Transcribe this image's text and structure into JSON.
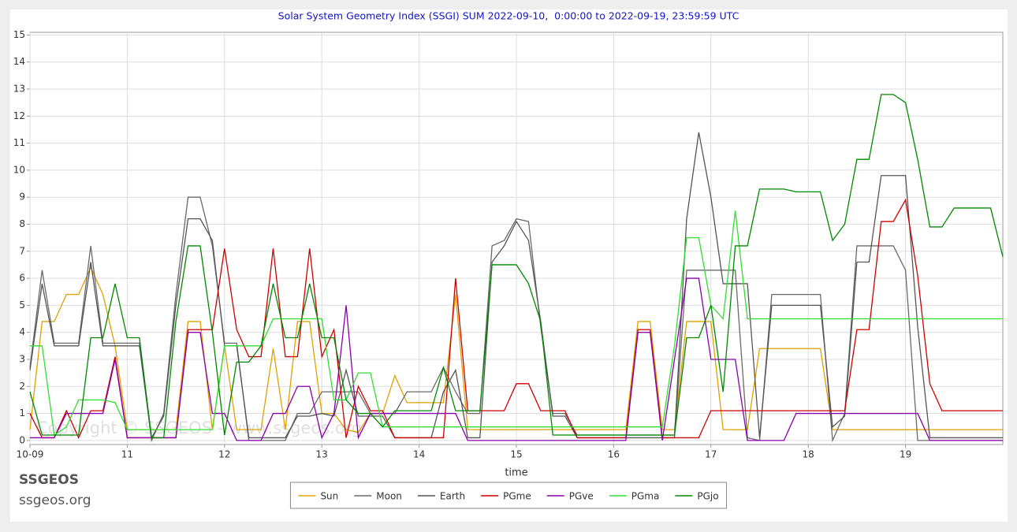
{
  "chart_data": {
    "type": "line",
    "title": "Solar System Geometry Index (SSGI) SUM 2022-09-10,  0:00:00 to 2022-09-19, 23:59:59 UTC",
    "x_label": "time",
    "brand": "SSGEOS",
    "site": "ssgeos.org",
    "watermark": "Copyright © SSGEOS - www.ssgeos.org",
    "xlim": [
      10,
      20
    ],
    "ylim": [
      -0.15,
      15.1
    ],
    "xticks": [
      {
        "value": 10,
        "label": "10-09"
      },
      11,
      12,
      13,
      14,
      15,
      16,
      17,
      18,
      19
    ],
    "yticks": [
      0,
      1,
      2,
      3,
      4,
      5,
      6,
      7,
      8,
      9,
      10,
      11,
      12,
      13,
      14,
      15
    ],
    "grid": true,
    "legend": "bottom",
    "x": [
      10,
      10.125,
      10.25,
      10.375,
      10.5,
      10.625,
      10.75,
      10.875,
      11,
      11.125,
      11.25,
      11.375,
      11.5,
      11.625,
      11.75,
      11.875,
      12,
      12.125,
      12.25,
      12.375,
      12.5,
      12.625,
      12.75,
      12.875,
      13,
      13.125,
      13.25,
      13.375,
      13.5,
      13.625,
      13.75,
      13.875,
      14,
      14.125,
      14.25,
      14.375,
      14.5,
      14.625,
      14.75,
      14.875,
      15,
      15.125,
      15.25,
      15.375,
      15.5,
      15.625,
      15.75,
      15.875,
      16,
      16.125,
      16.25,
      16.375,
      16.5,
      16.625,
      16.75,
      16.875,
      17,
      17.125,
      17.25,
      17.375,
      17.5,
      17.625,
      17.75,
      17.875,
      18,
      18.125,
      18.25,
      18.375,
      18.5,
      18.625,
      18.75,
      18.875,
      19,
      19.125,
      19.25,
      19.375,
      19.5,
      19.625,
      19.75,
      19.875,
      20
    ],
    "series": [
      {
        "name": "Sun",
        "color": "#e0a000",
        "values": [
          0.4,
          4.4,
          4.4,
          5.4,
          5.4,
          6.4,
          5.4,
          3.5,
          0.4,
          0.4,
          0.4,
          0.4,
          0.4,
          4.4,
          4.4,
          0.4,
          3.5,
          0.4,
          0.4,
          0.4,
          3.4,
          0.4,
          4.4,
          4.4,
          1.0,
          1.0,
          0.4,
          0.3,
          1.0,
          1.0,
          2.4,
          1.4,
          1.4,
          1.4,
          1.4,
          5.4,
          0.4,
          0.4,
          0.4,
          0.4,
          0.4,
          0.4,
          0.4,
          0.4,
          0.4,
          0.4,
          0.4,
          0.4,
          0.4,
          0.4,
          4.4,
          4.4,
          0.4,
          0.4,
          4.4,
          4.4,
          4.4,
          0.4,
          0.4,
          0.4,
          3.4,
          3.4,
          3.4,
          3.4,
          3.4,
          3.4,
          0.4,
          0.4,
          0.4,
          0.4,
          0.4,
          0.4,
          0.4,
          0.4,
          0.4,
          0.4,
          0.4,
          0.4,
          0.4,
          0.4,
          0.4
        ]
      },
      {
        "name": "Moon",
        "color": "#6a6a6a",
        "values": [
          2.7,
          6.3,
          3.6,
          3.6,
          3.6,
          7.2,
          3.6,
          3.6,
          3.6,
          3.6,
          0.0,
          1.0,
          5.4,
          9.0,
          9.0,
          7.2,
          3.6,
          3.6,
          0.0,
          0.0,
          0.0,
          0.0,
          1.0,
          1.0,
          1.8,
          1.8,
          1.8,
          1.8,
          1.0,
          1.0,
          1.0,
          1.8,
          1.8,
          1.8,
          2.7,
          1.8,
          1.0,
          1.0,
          7.2,
          7.4,
          8.2,
          8.1,
          4.2,
          1.0,
          1.0,
          0.2,
          0.2,
          0.2,
          0.2,
          0.2,
          0.2,
          0.2,
          0.2,
          0.2,
          6.3,
          6.3,
          6.3,
          6.3,
          6.3,
          0.1,
          0.0,
          5.4,
          5.4,
          5.4,
          5.4,
          5.4,
          0.0,
          1.0,
          7.2,
          7.2,
          7.2,
          7.2,
          6.3,
          0.0,
          0.0,
          0.0,
          0.0,
          0.0,
          0.0,
          0.0,
          0.0
        ]
      },
      {
        "name": "Earth",
        "color": "#555555",
        "values": [
          2.6,
          5.8,
          3.5,
          3.5,
          3.5,
          6.6,
          3.5,
          3.5,
          3.5,
          3.5,
          0.1,
          0.9,
          5.0,
          8.2,
          8.2,
          7.4,
          3.5,
          3.5,
          0.1,
          0.1,
          0.1,
          0.1,
          0.9,
          0.9,
          1.0,
          0.9,
          2.6,
          0.9,
          0.9,
          0.9,
          0.1,
          0.1,
          0.1,
          0.1,
          1.8,
          2.6,
          0.1,
          0.1,
          6.6,
          7.2,
          8.1,
          7.4,
          4.4,
          0.9,
          0.9,
          0.1,
          0.1,
          0.1,
          0.1,
          0.1,
          0.1,
          0.1,
          0.1,
          0.1,
          8.2,
          11.4,
          9.0,
          5.8,
          5.8,
          5.8,
          0.1,
          5.0,
          5.0,
          5.0,
          5.0,
          5.0,
          0.5,
          0.9,
          6.6,
          6.6,
          9.8,
          9.8,
          9.8,
          4.2,
          0.1,
          0.1,
          0.1,
          0.1,
          0.1,
          0.1,
          0.1
        ]
      },
      {
        "name": "PGme",
        "color": "#cc0000",
        "values": [
          1.0,
          0.1,
          0.1,
          1.1,
          0.1,
          1.1,
          1.1,
          3.1,
          0.1,
          0.1,
          0.1,
          0.1,
          0.1,
          4.1,
          4.1,
          4.1,
          7.1,
          4.1,
          3.1,
          3.1,
          7.1,
          3.1,
          3.1,
          7.1,
          3.1,
          4.1,
          0.1,
          2.0,
          1.1,
          1.1,
          0.1,
          0.1,
          0.1,
          0.1,
          0.1,
          6.0,
          1.1,
          1.1,
          1.1,
          1.1,
          2.1,
          2.1,
          1.1,
          1.1,
          1.1,
          0.1,
          0.1,
          0.1,
          0.1,
          0.1,
          4.1,
          4.1,
          0.1,
          0.1,
          0.1,
          0.1,
          1.1,
          1.1,
          1.1,
          1.1,
          1.1,
          1.1,
          1.1,
          1.1,
          1.1,
          1.1,
          1.1,
          1.1,
          4.1,
          4.1,
          8.1,
          8.1,
          8.9,
          6.1,
          2.1,
          1.1,
          1.1,
          1.1,
          1.1,
          1.1,
          1.1
        ]
      },
      {
        "name": "PGve",
        "color": "#8800aa",
        "values": [
          0.1,
          0.1,
          0.1,
          1.0,
          1.0,
          1.0,
          1.0,
          3.0,
          0.1,
          0.1,
          0.1,
          0.1,
          0.1,
          4.0,
          4.0,
          1.0,
          1.0,
          0.0,
          0.0,
          0.0,
          1.0,
          1.0,
          2.0,
          2.0,
          0.1,
          1.0,
          5.0,
          0.1,
          1.0,
          1.0,
          1.0,
          1.0,
          1.0,
          1.0,
          1.0,
          1.0,
          0.0,
          0.0,
          0.0,
          0.0,
          0.0,
          0.0,
          0.0,
          0.0,
          0.0,
          0.0,
          0.0,
          0.0,
          0.0,
          0.0,
          4.0,
          4.0,
          0.0,
          3.0,
          6.0,
          6.0,
          3.0,
          3.0,
          3.0,
          0.0,
          0.0,
          0.0,
          0.0,
          1.0,
          1.0,
          1.0,
          1.0,
          1.0,
          1.0,
          1.0,
          1.0,
          1.0,
          1.0,
          1.0,
          0.0,
          0.0,
          0.0,
          0.0,
          0.0,
          0.0,
          0.0
        ]
      },
      {
        "name": "PGma",
        "color": "#33dd33",
        "values": [
          3.5,
          3.5,
          0.2,
          0.5,
          1.5,
          1.5,
          1.5,
          1.4,
          0.4,
          0.4,
          0.4,
          0.4,
          0.4,
          0.4,
          0.4,
          0.4,
          3.5,
          3.5,
          3.5,
          3.5,
          4.5,
          4.5,
          4.5,
          4.5,
          4.5,
          1.5,
          1.5,
          2.5,
          2.5,
          0.5,
          0.5,
          0.5,
          0.5,
          0.5,
          0.5,
          0.5,
          0.5,
          0.5,
          0.5,
          0.5,
          0.5,
          0.5,
          0.5,
          0.5,
          0.5,
          0.5,
          0.5,
          0.5,
          0.5,
          0.5,
          0.5,
          0.5,
          0.5,
          3.5,
          7.5,
          7.5,
          5.0,
          4.5,
          8.5,
          4.5,
          4.5,
          4.5,
          4.5,
          4.5,
          4.5,
          4.5,
          4.5,
          4.5,
          4.5,
          4.5,
          4.5,
          4.5,
          4.5,
          4.5,
          4.5,
          4.5,
          4.5,
          4.5,
          4.5,
          4.5,
          4.5
        ]
      },
      {
        "name": "PGjo",
        "color": "#008800",
        "values": [
          1.8,
          0.2,
          0.2,
          0.2,
          0.2,
          3.8,
          3.8,
          5.8,
          3.8,
          3.8,
          0.1,
          0.1,
          4.4,
          7.2,
          7.2,
          4.0,
          0.2,
          2.9,
          2.9,
          3.5,
          5.8,
          3.8,
          3.8,
          5.8,
          3.8,
          3.8,
          1.5,
          1.0,
          1.0,
          0.5,
          1.1,
          1.1,
          1.1,
          1.1,
          2.7,
          1.1,
          1.1,
          1.1,
          6.5,
          6.5,
          6.5,
          5.8,
          4.4,
          0.2,
          0.2,
          0.2,
          0.2,
          0.2,
          0.2,
          0.2,
          0.2,
          0.2,
          0.2,
          0.2,
          3.8,
          3.8,
          5.0,
          1.8,
          7.2,
          7.2,
          9.3,
          9.3,
          9.3,
          9.2,
          9.2,
          9.2,
          7.4,
          8.0,
          10.4,
          10.4,
          12.8,
          12.8,
          12.5,
          10.4,
          7.9,
          7.9,
          8.6,
          8.6,
          8.6,
          8.6,
          6.8
        ]
      }
    ]
  }
}
